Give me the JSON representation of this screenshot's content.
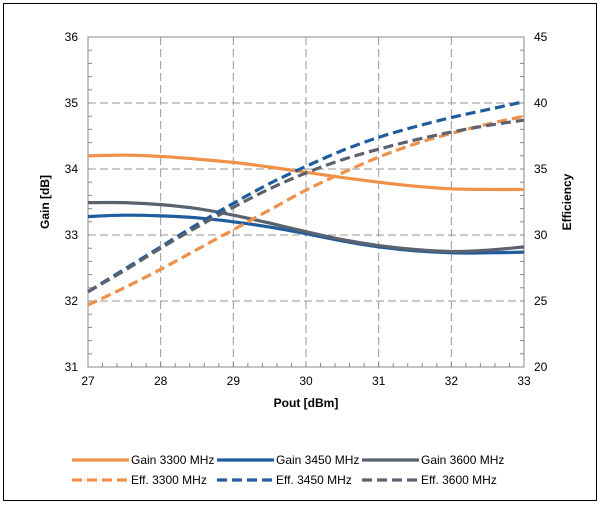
{
  "chart_data": {
    "type": "line",
    "xlabel": "Pout [dBm]",
    "ylabel": "Gain [dB]",
    "y2label": "Efficiency",
    "xlim": [
      27,
      33
    ],
    "ylim": [
      31,
      36
    ],
    "y2lim": [
      20,
      45
    ],
    "x_ticks": [
      "27",
      "28",
      "29",
      "30",
      "31",
      "32",
      "33"
    ],
    "y_ticks": [
      "31",
      "32",
      "33",
      "34",
      "35",
      "36"
    ],
    "y2_ticks": [
      "20",
      "25",
      "30",
      "35",
      "40",
      "45"
    ],
    "grid": true,
    "legend_position": "bottom",
    "series": [
      {
        "name": "Gain 3300 MHz",
        "axis": "left",
        "color": "#F0914A",
        "style": "solid",
        "x": [
          27,
          27.5,
          28,
          28.5,
          29,
          29.5,
          30,
          30.5,
          31,
          31.5,
          32,
          32.5,
          33
        ],
        "y": [
          34.2,
          34.21,
          34.19,
          34.15,
          34.1,
          34.03,
          33.95,
          33.87,
          33.8,
          33.74,
          33.7,
          33.69,
          33.69
        ]
      },
      {
        "name": "Gain 3450 MHz",
        "axis": "left",
        "color": "#1F5C9E",
        "style": "solid",
        "x": [
          27,
          27.5,
          28,
          28.5,
          29,
          29.5,
          30,
          30.5,
          31,
          31.5,
          32,
          32.5,
          33
        ],
        "y": [
          33.28,
          33.3,
          33.29,
          33.26,
          33.2,
          33.12,
          33.02,
          32.91,
          32.82,
          32.76,
          32.73,
          32.73,
          32.74
        ]
      },
      {
        "name": "Gain 3600 MHz",
        "axis": "left",
        "color": "#5A6270",
        "style": "solid",
        "x": [
          27,
          27.5,
          28,
          28.5,
          29,
          29.5,
          30,
          30.5,
          31,
          31.5,
          32,
          32.5,
          33
        ],
        "y": [
          33.49,
          33.49,
          33.46,
          33.4,
          33.3,
          33.18,
          33.05,
          32.93,
          32.84,
          32.78,
          32.75,
          32.77,
          32.82
        ]
      },
      {
        "name": "Eff. 3300 MHz",
        "axis": "right",
        "color": "#F0914A",
        "style": "dashed",
        "x": [
          27,
          27.5,
          28,
          28.5,
          29,
          29.5,
          30,
          30.5,
          31,
          31.5,
          32,
          32.5,
          33
        ],
        "y": [
          24.7,
          26.0,
          27.4,
          28.9,
          30.4,
          31.9,
          33.4,
          34.7,
          35.9,
          36.9,
          37.7,
          38.4,
          39.0
        ]
      },
      {
        "name": "Eff. 3450 MHz",
        "axis": "right",
        "color": "#1F5C9E",
        "style": "dashed",
        "x": [
          27,
          27.5,
          28,
          28.5,
          29,
          29.5,
          30,
          30.5,
          31,
          31.5,
          32,
          32.5,
          33
        ],
        "y": [
          25.7,
          27.4,
          29.1,
          30.8,
          32.4,
          33.9,
          35.2,
          36.4,
          37.4,
          38.2,
          38.9,
          39.5,
          40.1
        ]
      },
      {
        "name": "Eff. 3600 MHz",
        "axis": "right",
        "color": "#5A6270",
        "style": "dashed",
        "x": [
          27,
          27.5,
          28,
          28.5,
          29,
          29.5,
          30,
          30.5,
          31,
          31.5,
          32,
          32.5,
          33
        ],
        "y": [
          25.7,
          27.3,
          29.0,
          30.6,
          32.1,
          33.5,
          34.7,
          35.7,
          36.5,
          37.2,
          37.8,
          38.3,
          38.7
        ]
      }
    ]
  }
}
